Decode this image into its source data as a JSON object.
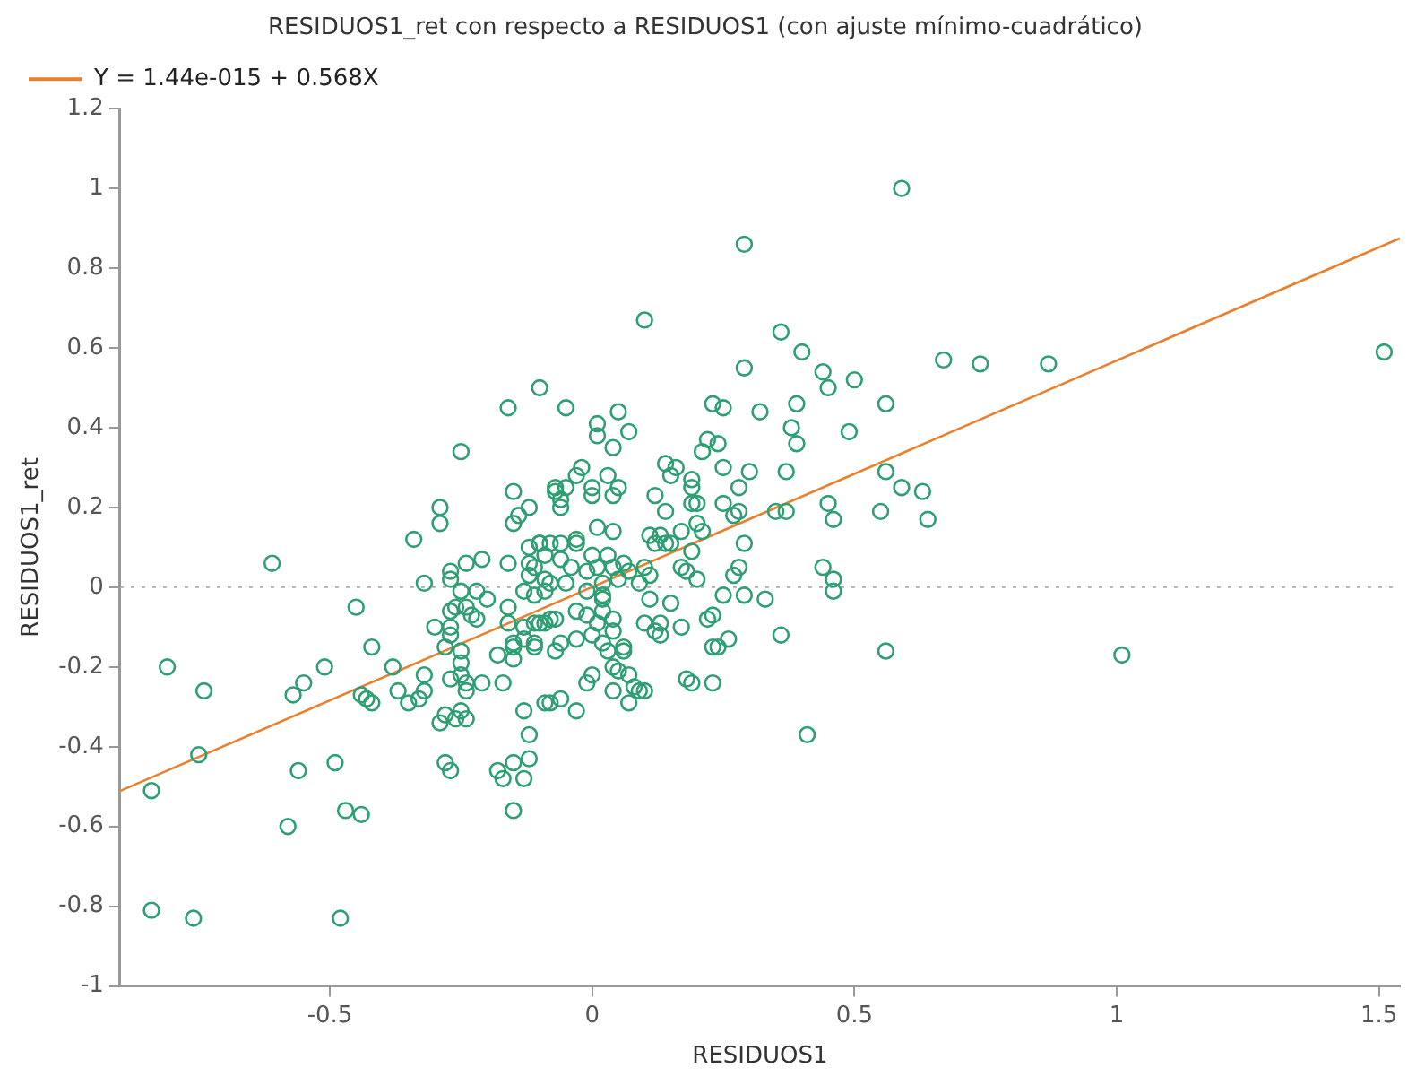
{
  "chart_data": {
    "type": "scatter",
    "title": "RESIDUOS1_ret con respecto a RESIDUOS1 (con ajuste mínimo-cuadrático)",
    "xlabel": "RESIDUOS1",
    "ylabel": "RESIDUOS1_ret",
    "xlim": [
      -0.9,
      1.54
    ],
    "ylim": [
      -1,
      1.2
    ],
    "xticks": [
      -0.5,
      0,
      0.5,
      1,
      1.5
    ],
    "yticks": [
      -1,
      -0.8,
      -0.6,
      -0.4,
      -0.2,
      0,
      0.2,
      0.4,
      0.6,
      0.8,
      1,
      1.2
    ],
    "grid": false,
    "legend": "top left",
    "ref_lines": [
      {
        "axis": "y",
        "value": 0,
        "color": "#aaaaaa",
        "line_style": "dotted"
      }
    ],
    "series": [
      {
        "color": "#2e9f72",
        "marker": "circle",
        "x": [
          0.59,
          0.29,
          0.1,
          -0.84,
          -0.81,
          -0.84,
          -0.76,
          -0.75,
          -0.74,
          -0.61,
          -0.45,
          -0.42,
          -0.51,
          -0.55,
          -0.57,
          -0.56,
          -0.58,
          -0.49,
          -0.47,
          -0.44,
          -0.48,
          -0.44,
          -0.43,
          -0.42,
          -0.38,
          -0.37,
          -0.35,
          -0.33,
          -0.32,
          -0.32,
          -0.32,
          -0.34,
          -0.3,
          -0.29,
          -0.28,
          -0.26,
          -0.28,
          -0.27,
          -0.27,
          -0.24,
          -0.24,
          -0.25,
          -0.25,
          -0.25,
          -0.25,
          -0.24,
          -0.28,
          -0.27,
          -0.27,
          -0.27,
          -0.26,
          -0.25,
          -0.22,
          -0.2,
          -0.24,
          -0.23,
          -0.22,
          -0.27,
          -0.27,
          -0.24,
          -0.21,
          -0.16,
          -0.12,
          -0.12,
          -0.13,
          -0.21,
          -0.17,
          -0.18,
          -0.17,
          -0.15,
          -0.12,
          -0.13,
          -0.15,
          -0.13,
          -0.12,
          -0.18,
          -0.15,
          -0.15,
          -0.15,
          -0.16,
          -0.16,
          -0.13,
          -0.11,
          -0.11,
          -0.29,
          -0.29,
          -0.25,
          -0.16,
          -0.1,
          -0.15,
          -0.12,
          -0.14,
          -0.15,
          -0.1,
          0.36,
          0.4,
          0.29,
          0.44,
          0.45,
          0.5,
          0.67,
          -0.05,
          0.01,
          0.05,
          0.01,
          0.07,
          0.04,
          0.23,
          0.25,
          0.32,
          0.39,
          0.56,
          0.38,
          0.39,
          0.49,
          0.22,
          0.24,
          0.21,
          0.14,
          0.16,
          0.15,
          0.19,
          0.19,
          0.25,
          0.3,
          0.28,
          0.37,
          0.56,
          0.59,
          0.63,
          0.64,
          0.55,
          0.45,
          0.46,
          0.35,
          0.37,
          0.25,
          0.28,
          0.27,
          0.29,
          0.2,
          0.19,
          0.2,
          0.21,
          0.17,
          0.12,
          0.14,
          0.11,
          0.13,
          0.14,
          -0.03,
          -0.02,
          0,
          0,
          0.03,
          0.05,
          0.04,
          -0.07,
          -0.06,
          -0.07,
          -0.05,
          -0.06,
          0.01,
          0.04,
          -0.03,
          0.19,
          0.17,
          0.18,
          0.2,
          0.27,
          0.28,
          0.25,
          0.29,
          0.33,
          0.44,
          0.46,
          0.46,
          0.11,
          0.15,
          0.17,
          0.1,
          0.13,
          0.12,
          0.13,
          0.22,
          0.23,
          0.26,
          0.23,
          0.24,
          0.36,
          0.18,
          0.19,
          0.23,
          0.56,
          0.41,
          0.04,
          0.04,
          0.02,
          0.03,
          0.06,
          0.06,
          0.04,
          0.05,
          0.07,
          0,
          -0.01,
          0.04,
          0.07,
          0.08,
          0.09,
          0.1,
          -0.09,
          -0.08,
          -0.06,
          -0.03,
          -0.11,
          -0.07,
          -0.06,
          -0.03,
          0,
          -0.1,
          -0.08,
          -0.07,
          -0.03,
          -0.01,
          0.01,
          0.02,
          0.02,
          0.02,
          -0.01,
          -0.1,
          -0.08,
          -0.06,
          -0.03,
          -0.09,
          -0.06,
          -0.04,
          0,
          0.03,
          -0.01,
          0.01,
          0.04,
          0.06,
          0.05,
          0.07,
          0.1,
          0.11,
          0.09,
          0.15,
          0.12,
          -0.09,
          -0.08,
          -0.11,
          -0.05,
          0.02,
          -0.12,
          -0.1,
          -0.11,
          -0.09,
          -0.13,
          -0.09,
          1.51,
          0.87,
          0.74,
          1.01
        ],
        "values": [
          1.0,
          0.86,
          0.67,
          -0.51,
          -0.2,
          -0.81,
          -0.83,
          -0.42,
          -0.26,
          0.06,
          -0.05,
          -0.15,
          -0.2,
          -0.24,
          -0.27,
          -0.46,
          -0.6,
          -0.44,
          -0.56,
          -0.57,
          -0.83,
          -0.27,
          -0.28,
          -0.29,
          -0.2,
          -0.26,
          -0.29,
          -0.28,
          -0.26,
          -0.22,
          0.01,
          0.12,
          -0.1,
          -0.34,
          -0.32,
          -0.33,
          -0.44,
          -0.46,
          -0.23,
          -0.26,
          -0.33,
          -0.31,
          -0.16,
          -0.19,
          -0.22,
          -0.24,
          -0.15,
          -0.12,
          -0.1,
          -0.06,
          -0.05,
          -0.01,
          -0.01,
          -0.03,
          -0.05,
          -0.07,
          -0.08,
          0.04,
          0.02,
          0.06,
          0.07,
          0.06,
          0.06,
          0.03,
          -0.01,
          -0.24,
          -0.24,
          -0.46,
          -0.48,
          -0.44,
          -0.43,
          -0.48,
          -0.56,
          -0.31,
          -0.37,
          -0.17,
          -0.14,
          -0.15,
          -0.18,
          -0.09,
          -0.05,
          -0.1,
          -0.14,
          -0.09,
          0.2,
          0.16,
          0.34,
          0.45,
          0.5,
          0.24,
          0.2,
          0.18,
          0.16,
          0.11,
          0.64,
          0.59,
          0.55,
          0.54,
          0.5,
          0.52,
          0.57,
          0.45,
          0.41,
          0.44,
          0.38,
          0.39,
          0.35,
          0.46,
          0.45,
          0.44,
          0.46,
          0.46,
          0.4,
          0.36,
          0.39,
          0.37,
          0.36,
          0.34,
          0.31,
          0.3,
          0.28,
          0.27,
          0.25,
          0.3,
          0.29,
          0.25,
          0.29,
          0.29,
          0.25,
          0.24,
          0.17,
          0.19,
          0.21,
          0.17,
          0.19,
          0.19,
          0.21,
          0.19,
          0.18,
          0.11,
          0.21,
          0.21,
          0.16,
          0.14,
          0.14,
          0.23,
          0.19,
          0.13,
          0.13,
          0.11,
          0.28,
          0.3,
          0.25,
          0.23,
          0.28,
          0.25,
          0.23,
          0.24,
          0.22,
          0.25,
          0.25,
          0.2,
          0.15,
          0.14,
          0.12,
          0.09,
          0.05,
          0.04,
          0.02,
          0.03,
          0.05,
          -0.02,
          -0.02,
          -0.03,
          0.05,
          0.02,
          -0.01,
          -0.03,
          -0.04,
          -0.1,
          -0.09,
          -0.09,
          -0.11,
          -0.12,
          -0.08,
          -0.07,
          -0.13,
          -0.15,
          -0.15,
          -0.12,
          -0.23,
          -0.24,
          -0.24,
          -0.16,
          -0.37,
          -0.08,
          -0.11,
          -0.14,
          -0.16,
          -0.15,
          -0.16,
          -0.2,
          -0.21,
          -0.22,
          -0.22,
          -0.24,
          -0.26,
          -0.29,
          -0.25,
          -0.26,
          -0.26,
          -0.29,
          -0.29,
          -0.28,
          -0.31,
          -0.15,
          -0.16,
          -0.14,
          -0.13,
          -0.12,
          -0.09,
          -0.08,
          -0.08,
          -0.06,
          -0.07,
          -0.09,
          -0.06,
          -0.03,
          -0.02,
          -0.01,
          0.11,
          0.11,
          0.11,
          0.11,
          0.08,
          0.07,
          0.05,
          0.08,
          0.08,
          0.04,
          0.05,
          0.05,
          0.06,
          0.02,
          0.04,
          0.05,
          0.03,
          0.01,
          0.11,
          0.11,
          0.02,
          0.01,
          -0.02,
          0.01,
          0.01,
          0.1,
          0.11,
          0.05,
          -0.01,
          -0.13,
          -0.09,
          0.59,
          0.56,
          0.56,
          -0.17
        ]
      },
      {
        "type": "line",
        "name": "Y = 1.44e-015 + 0.568X",
        "color": "#e8812f",
        "marker": "none",
        "x": [
          -0.9,
          1.54
        ],
        "values": [
          -0.511,
          0.875
        ]
      }
    ]
  }
}
